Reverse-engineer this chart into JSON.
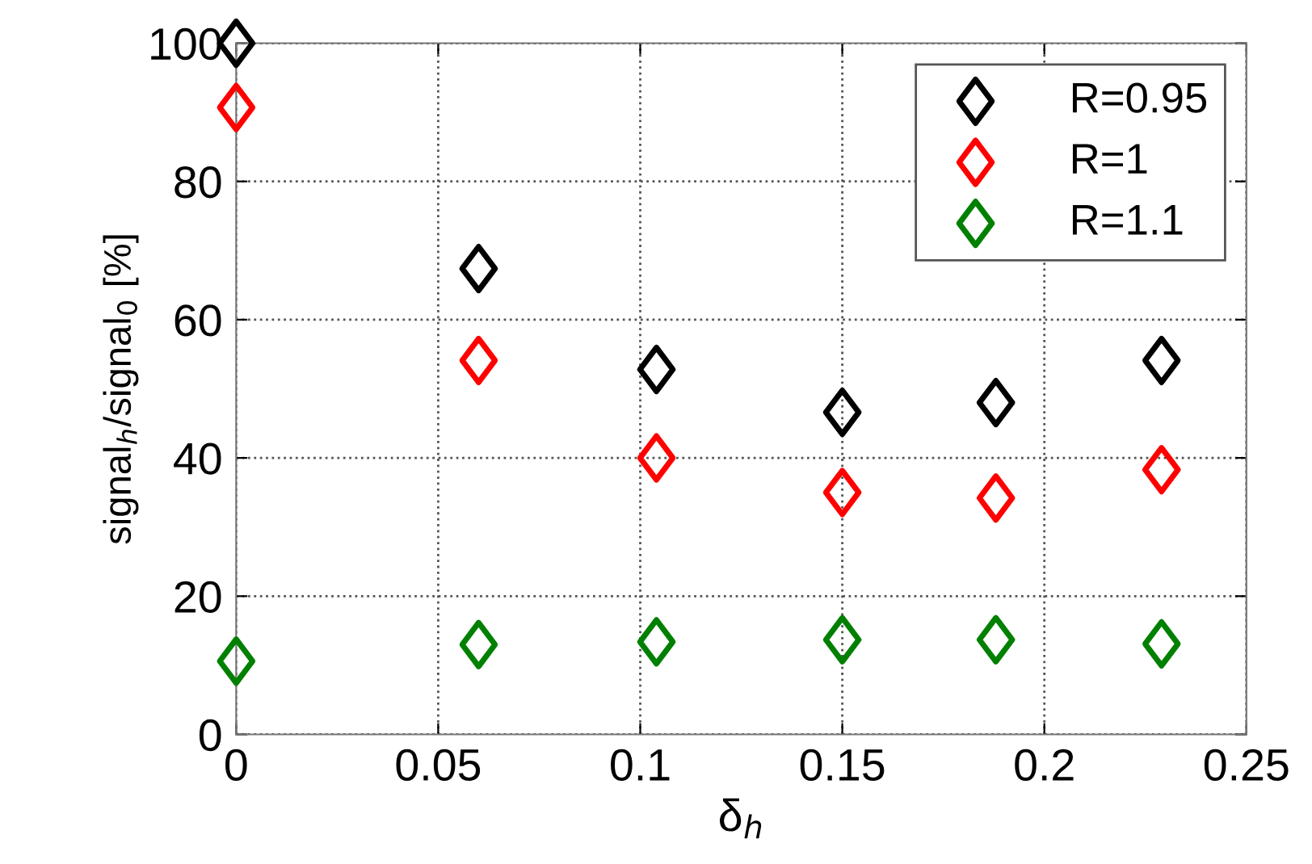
{
  "chart_data": {
    "type": "scatter",
    "xlabel": "δ$_{h}$",
    "ylabel": "signal$_{h}$/signal$_{0}$ [%]",
    "x": [
      0,
      0.06,
      0.104,
      0.15,
      0.188,
      0.229
    ],
    "series": [
      {
        "name": "R=0.95",
        "color": "#000000",
        "values": [
          100,
          67.4,
          52.8,
          46.6,
          48.0,
          54.1
        ]
      },
      {
        "name": "R=1",
        "color": "#ff0000",
        "values": [
          90.7,
          54.1,
          40.0,
          35.0,
          34.2,
          38.3
        ]
      },
      {
        "name": "R=1.1",
        "color": "#008000",
        "values": [
          10.6,
          13.0,
          13.4,
          13.7,
          13.7,
          13.1
        ]
      }
    ],
    "xlim": [
      0,
      0.25
    ],
    "xticks": [
      0,
      0.05,
      0.1,
      0.15,
      0.2,
      0.25
    ],
    "ylim": [
      0,
      100
    ],
    "yticks": [
      0,
      20,
      40,
      60,
      80,
      100
    ],
    "grid": true,
    "legend": "top right",
    "marker": "diamond"
  }
}
